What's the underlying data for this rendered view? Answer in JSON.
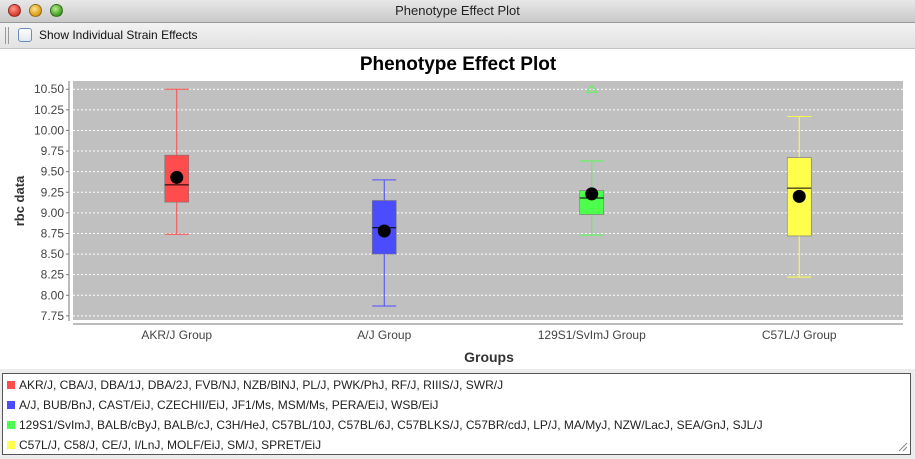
{
  "window": {
    "title": "Phenotype Effect Plot"
  },
  "toolbar": {
    "checkbox_label": "Show Individual Strain Effects",
    "checkbox_checked": false
  },
  "chart_data": {
    "type": "box",
    "title": "Phenotype Effect Plot",
    "xlabel": "Groups",
    "ylabel": "rbc data",
    "ylim": [
      7.7,
      10.6
    ],
    "yticks": [
      7.75,
      8.0,
      8.25,
      8.5,
      8.75,
      9.0,
      9.25,
      9.5,
      9.75,
      10.0,
      10.25,
      10.5
    ],
    "ytick_labels": [
      "7.75",
      "8.00",
      "8.25",
      "8.50",
      "8.75",
      "9.00",
      "9.25",
      "9.50",
      "9.75",
      "10.00",
      "10.25",
      "10.50"
    ],
    "grid": true,
    "background": "#c0c0c0",
    "categories": [
      "AKR/J Group",
      "A/J Group",
      "129S1/SvImJ Group",
      "C57L/J Group"
    ],
    "boxes": [
      {
        "name": "AKR/J Group",
        "color": "#ff4c4c",
        "whisker_low": 8.74,
        "q1": 9.13,
        "median": 9.34,
        "q3": 9.7,
        "whisker_high": 10.5,
        "mean": 9.43,
        "outliers": []
      },
      {
        "name": "A/J Group",
        "color": "#4c4cff",
        "whisker_low": 7.87,
        "q1": 8.5,
        "median": 8.82,
        "q3": 9.15,
        "whisker_high": 9.4,
        "mean": 8.78,
        "outliers": []
      },
      {
        "name": "129S1/SvImJ Group",
        "color": "#4cff4c",
        "whisker_low": 8.73,
        "q1": 8.98,
        "median": 9.18,
        "q3": 9.27,
        "whisker_high": 9.63,
        "mean": 9.23,
        "outliers": [
          10.5
        ]
      },
      {
        "name": "C57L/J Group",
        "color": "#ffff4c",
        "whisker_low": 8.22,
        "q1": 8.72,
        "median": 9.3,
        "q3": 9.67,
        "whisker_high": 10.17,
        "mean": 9.2,
        "outliers": []
      }
    ]
  },
  "legend": {
    "items": [
      {
        "color": "#ff4c4c",
        "label": "AKR/J, CBA/J, DBA/1J, DBA/2J, FVB/NJ, NZB/BlNJ, PL/J, PWK/PhJ, RF/J, RIIIS/J, SWR/J"
      },
      {
        "color": "#4c4cff",
        "label": "A/J, BUB/BnJ, CAST/EiJ, CZECHII/EiJ, JF1/Ms, MSM/Ms, PERA/EiJ, WSB/EiJ"
      },
      {
        "color": "#4cff4c",
        "label": "129S1/SvImJ, BALB/cByJ, BALB/cJ, C3H/HeJ, C57BL/10J, C57BL/6J, C57BLKS/J, C57BR/cdJ, LP/J, MA/MyJ, NZW/LacJ, SEA/GnJ, SJL/J"
      },
      {
        "color": "#ffff4c",
        "label": "C57L/J, C58/J, CE/J, I/LnJ, MOLF/EiJ, SM/J, SPRET/EiJ"
      }
    ]
  }
}
